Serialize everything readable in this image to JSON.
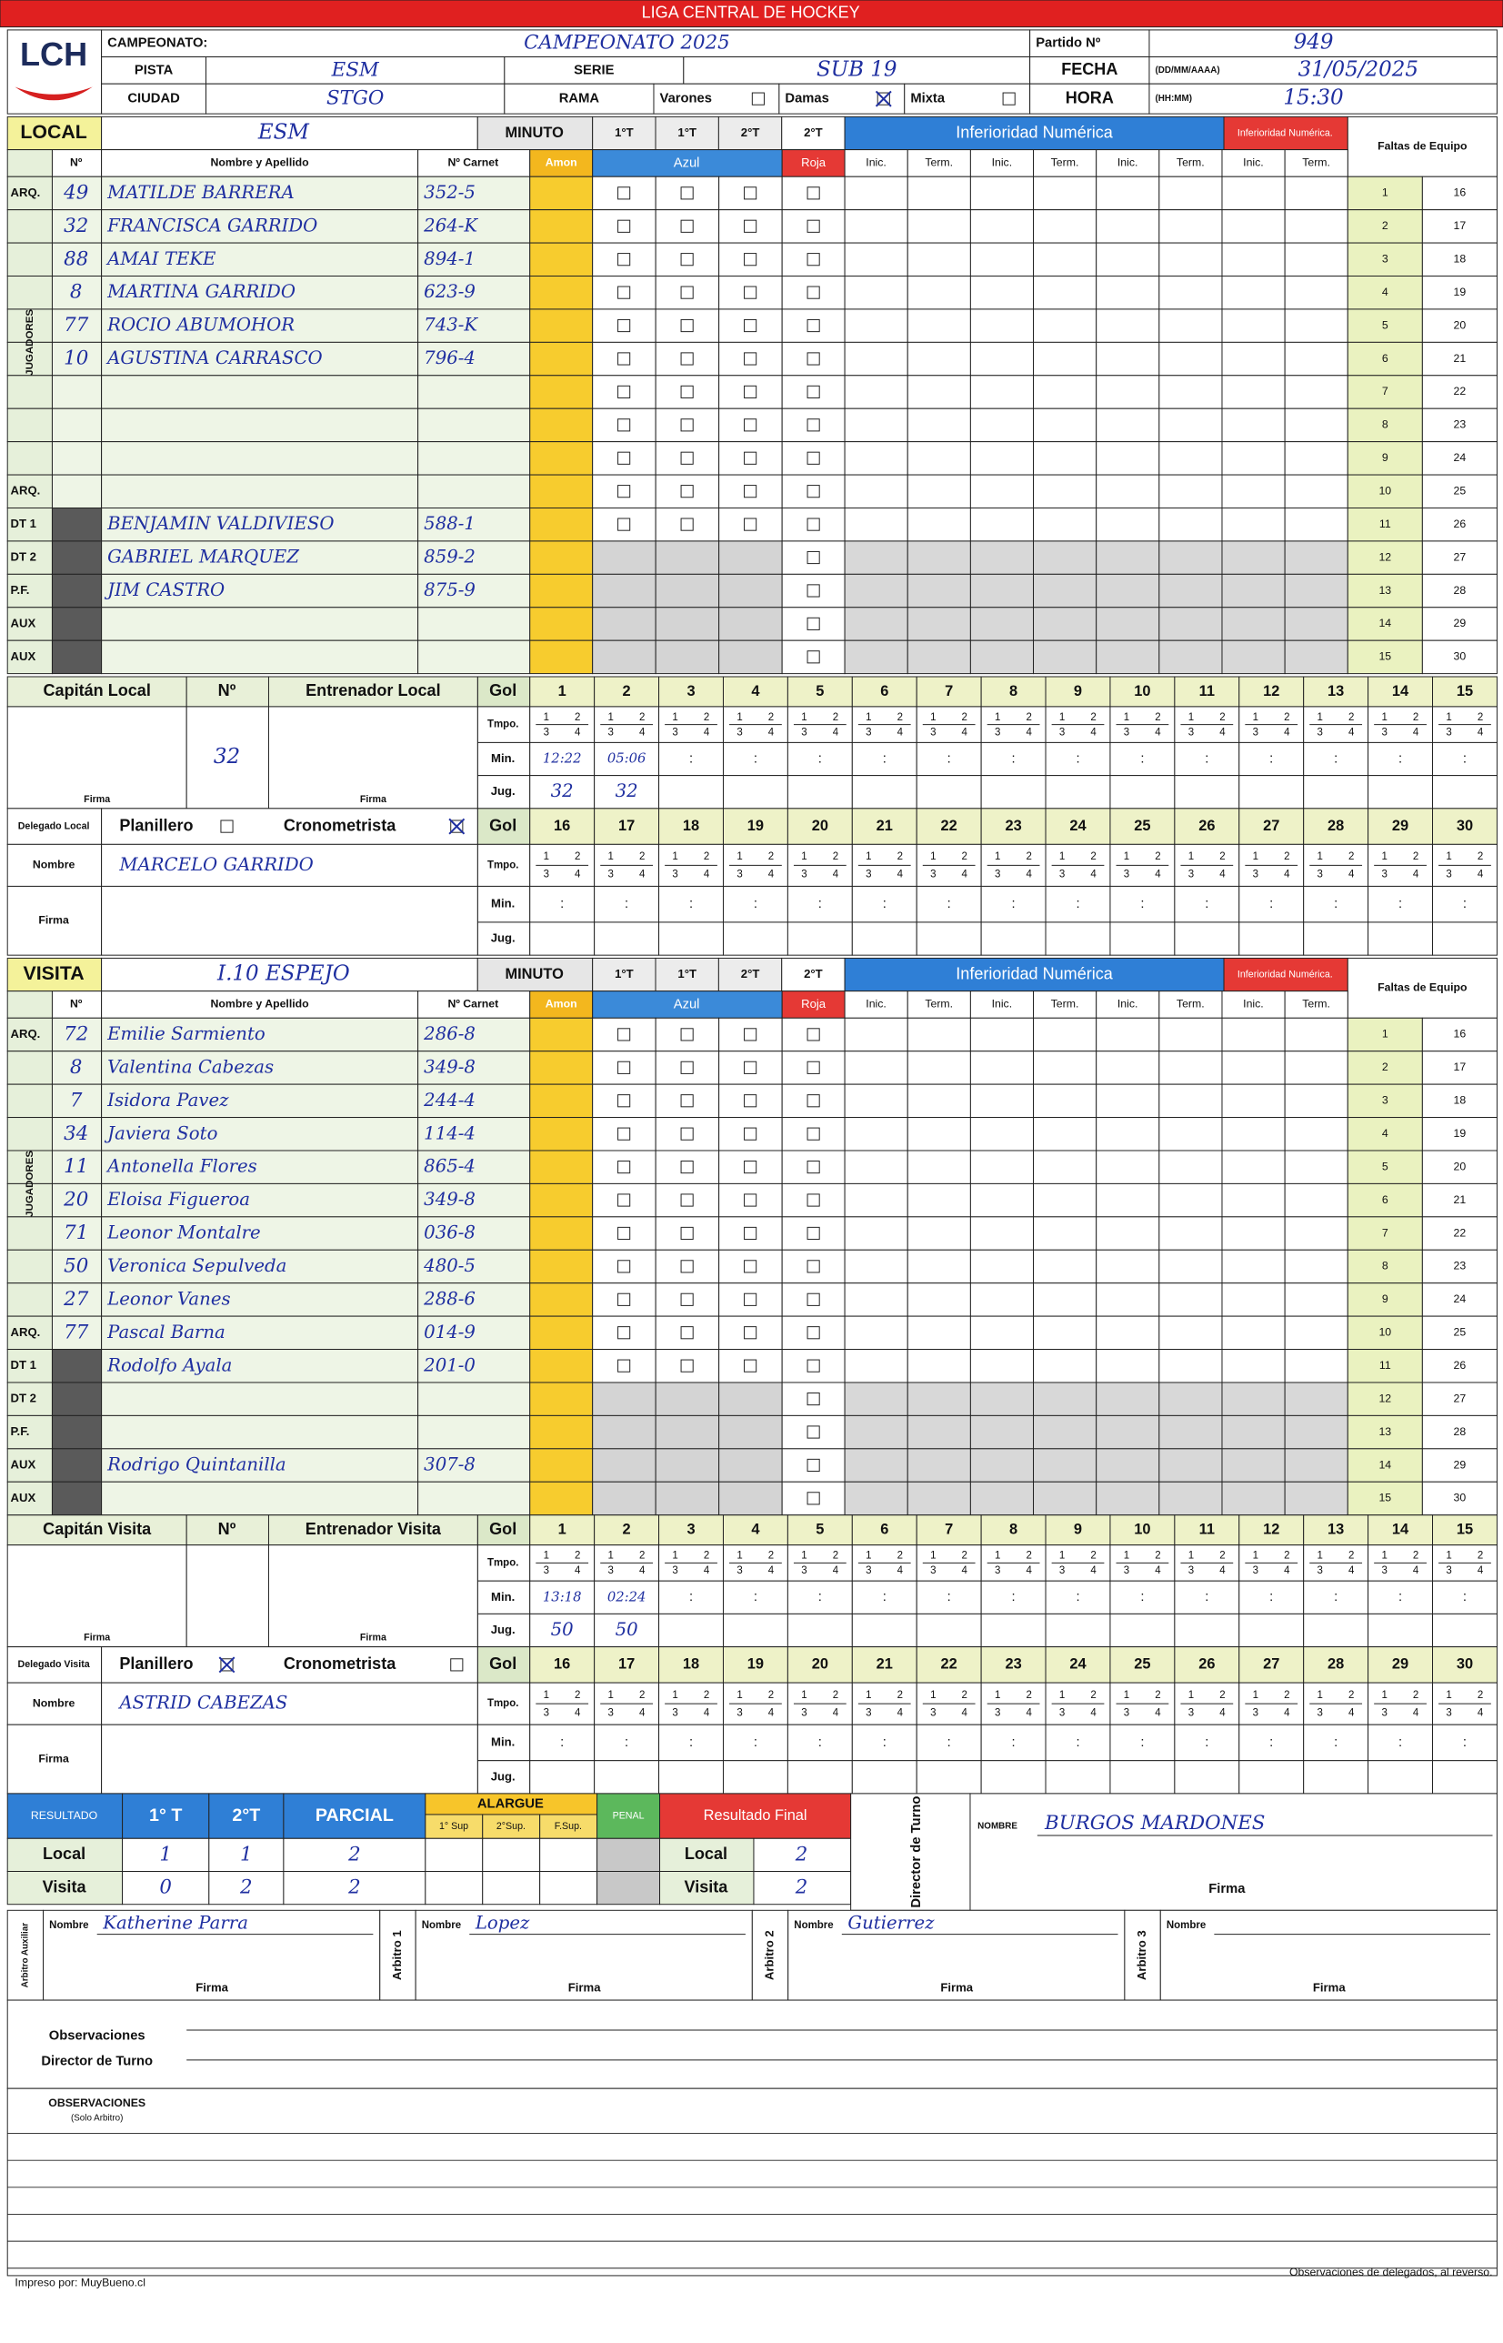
{
  "header": {
    "title": "LIGA CENTRAL DE HOCKEY",
    "logo": "LCH",
    "campeonato": {
      "label": "CAMPEONATO:",
      "value": "CAMPEONATO 2025"
    },
    "pista": {
      "label": "PISTA",
      "value": "ESM"
    },
    "ciudad": {
      "label": "CIUDAD",
      "value": "STGO"
    },
    "serie": {
      "label": "SERIE",
      "value": "SUB 19"
    },
    "rama": {
      "label": "RAMA",
      "options": [
        "Varones",
        "Damas",
        "Mixta"
      ],
      "checked": "Damas"
    },
    "partido": {
      "label": "Partido Nº",
      "value": "949"
    },
    "fecha": {
      "label": "FECHA",
      "format": "(DD/MM/AAAA)",
      "value": "31/05/2025"
    },
    "hora": {
      "label": "HORA",
      "format": "(HH:MM)",
      "value": "15:30"
    }
  },
  "columns": {
    "minuto": "MINUTO",
    "periods": [
      "1°T",
      "1°T",
      "2°T",
      "2°T"
    ],
    "number": "Nº",
    "name": "Nombre y Apellido",
    "carnet": "Nº Carnet",
    "amon": "Amon",
    "azul": "Azul",
    "roja": "Roja",
    "inferioridad": "Inferioridad Numérica",
    "inferioridad2": "Inferioridad Numérica.",
    "inic": "Inic.",
    "term": "Term.",
    "faltas": "Faltas de Equipo",
    "jugadores": "JUGADORES"
  },
  "row_roles": [
    "ARQ.",
    null,
    null,
    null,
    null,
    null,
    null,
    null,
    null,
    "ARQ.",
    "DT 1",
    "DT 2",
    "P.F.",
    "AUX",
    "AUX"
  ],
  "faltas": [
    1,
    2,
    3,
    4,
    5,
    6,
    7,
    8,
    9,
    10,
    11,
    12,
    13,
    14,
    15,
    16,
    17,
    18,
    19,
    20,
    21,
    22,
    23,
    24,
    25,
    26,
    27,
    28,
    29,
    30
  ],
  "goal_table": {
    "gol": "Gol",
    "tmpo": "Tmpo.",
    "min": "Min.",
    "jug": "Jug.",
    "numero": "Nº",
    "quarters": [
      1,
      2,
      3,
      4
    ],
    "numbers": [
      1,
      2,
      3,
      4,
      5,
      6,
      7,
      8,
      9,
      10,
      11,
      12,
      13,
      14,
      15,
      16,
      17,
      18,
      19,
      20,
      21,
      22,
      23,
      24,
      25,
      26,
      27,
      28,
      29,
      30
    ],
    "min_sep": ":",
    "firma": "Firma",
    "nombre": "Nombre",
    "planillero": "Planillero",
    "cronometrista": "Cronometrista"
  },
  "teams": [
    {
      "label": "LOCAL",
      "name": "ESM",
      "rows": [
        {
          "number": 49,
          "name": "MATILDE BARRERA",
          "carnet": "352-5"
        },
        {
          "number": 32,
          "name": "FRANCISCA GARRIDO",
          "carnet": "264-K"
        },
        {
          "number": 88,
          "name": "AMAI TEKE",
          "carnet": "894-1"
        },
        {
          "number": 8,
          "name": "MARTINA GARRIDO",
          "carnet": "623-9"
        },
        {
          "number": 77,
          "name": "ROCIO ABUMOHOR",
          "carnet": "743-K"
        },
        {
          "number": 10,
          "name": "AGUSTINA CARRASCO",
          "carnet": "796-4"
        },
        null,
        null,
        null,
        null,
        {
          "name": "BENJAMIN VALDIVIESO",
          "carnet": "588-1"
        },
        {
          "name": "GABRIEL MARQUEZ",
          "carnet": "859-2"
        },
        {
          "name": "JIM CASTRO",
          "carnet": "875-9"
        },
        null,
        null
      ],
      "captain_label": "Capitán Local",
      "captain_number": 32,
      "coach_label": "Entrenador Local",
      "delegate_label": "Delegado Local",
      "delegate_name": "MARCELO GARRIDO",
      "planillero_checked": false,
      "cronometrista_checked": true,
      "goals": [
        {
          "min": "12:22",
          "jug": 32
        },
        {
          "min": "05:06",
          "jug": 32
        }
      ]
    },
    {
      "label": "VISITA",
      "name": "I.10 ESPEJO",
      "rows": [
        {
          "number": 72,
          "name": "Emilie Sarmiento",
          "carnet": "286-8"
        },
        {
          "number": 8,
          "name": "Valentina Cabezas",
          "carnet": "349-8"
        },
        {
          "number": 7,
          "name": "Isidora Pavez",
          "carnet": "244-4"
        },
        {
          "number": 34,
          "name": "Javiera Soto",
          "carnet": "114-4"
        },
        {
          "number": 11,
          "name": "Antonella Flores",
          "carnet": "865-4"
        },
        {
          "number": 20,
          "name": "Eloisa Figueroa",
          "carnet": "349-8"
        },
        {
          "number": 71,
          "name": "Leonor Montalre",
          "carnet": "036-8"
        },
        {
          "number": 50,
          "name": "Veronica Sepulveda",
          "carnet": "480-5"
        },
        {
          "number": 27,
          "name": "Leonor Vanes",
          "carnet": "288-6"
        },
        {
          "number": 77,
          "name": "Pascal Barna",
          "carnet": "014-9"
        },
        {
          "name": "Rodolfo Ayala",
          "carnet": "201-0"
        },
        null,
        null,
        {
          "name": "Rodrigo Quintanilla",
          "carnet": "307-8"
        },
        null
      ],
      "captain_label": "Capitán Visita",
      "coach_label": "Entrenador Visita",
      "delegate_label": "Delegado Visita",
      "delegate_name": "ASTRID CABEZAS",
      "planillero_checked": true,
      "cronometrista_checked": false,
      "goals": [
        {
          "min": "13:18",
          "jug": 50
        },
        {
          "min": "02:24",
          "jug": 50
        }
      ]
    }
  ],
  "result": {
    "label": "RESULTADO",
    "cols": [
      "1° T",
      "2°T",
      "PARCIAL"
    ],
    "alargue": "ALARGUE",
    "alargue_cols": [
      "1° Sup",
      "2°Sup.",
      "F.Sup."
    ],
    "penal": "PENAL",
    "final": "Resultado Final",
    "rows": [
      {
        "label": "Local",
        "values": [
          1,
          1,
          2
        ],
        "final": 2
      },
      {
        "label": "Visita",
        "values": [
          0,
          2,
          2
        ],
        "final": 2
      }
    ]
  },
  "director": {
    "label": "Director de Turno",
    "nombre": "NOMBRE",
    "name": "BURGOS MARDONES",
    "firma": "Firma"
  },
  "referees": [
    {
      "label": "Arbitro Auxiliar",
      "nombre": "Nombre",
      "name": "Katherine Parra",
      "firma": "Firma"
    },
    {
      "label": "Arbitro 1",
      "nombre": "Nombre",
      "name": "Lopez",
      "firma": "Firma"
    },
    {
      "label": "Arbitro 2",
      "nombre": "Nombre",
      "name": "Gutierrez",
      "firma": "Firma"
    },
    {
      "label": "Arbitro 3",
      "nombre": "Nombre",
      "firma": "Firma"
    }
  ],
  "observations": {
    "director": [
      "Observaciones",
      "Director de Turno"
    ],
    "arbitro": "OBSERVACIONES",
    "arbitro_note": "(Solo Arbitro)"
  },
  "footer": {
    "printed_by": "Impreso por: MuyBueno.cl",
    "note": "Observaciones de delegados, al reverso."
  }
}
